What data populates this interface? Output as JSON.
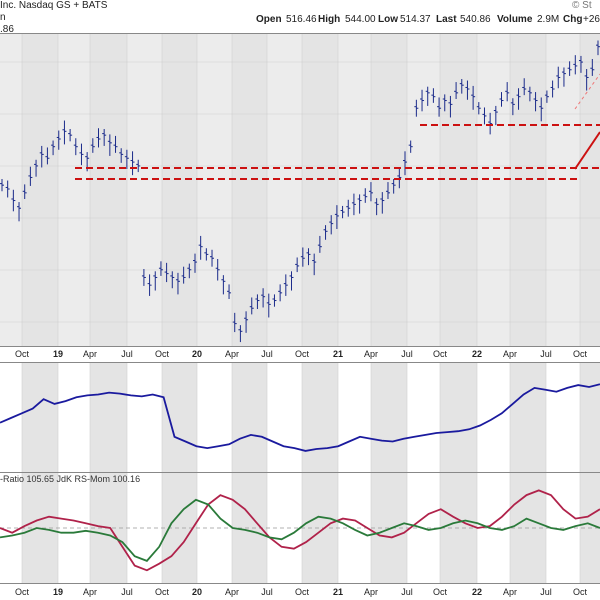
{
  "header": {
    "title_fragment": "Inc. Nasdaq GS + BATS",
    "open_label": "Open",
    "open_value": "516.46",
    "high_label": "High",
    "high_value": "544.00",
    "low_label": "Low",
    "low_value": "514.37",
    "last_label": "Last",
    "last_value": "540.86",
    "volume_label": "Volume",
    "volume_value": "2.9M",
    "chg_label": "Chg",
    "chg_value": "+26",
    "watermark": "© St",
    "price_fragment": ".86",
    "series_fragment": "n"
  },
  "chart_data": [
    {
      "type": "bar",
      "description_label": "price-ohlc",
      "x_ticks": [
        "Oct",
        "19",
        "Apr",
        "Jul",
        "Oct",
        "20",
        "Apr",
        "Jul",
        "Oct",
        "21",
        "Apr",
        "Jul",
        "Oct",
        "22",
        "Apr",
        "Jul",
        "Oct"
      ],
      "weekly_close_approx": [
        420,
        415,
        400,
        390,
        410,
        430,
        445,
        460,
        455,
        470,
        480,
        490,
        485,
        470,
        460,
        455,
        470,
        480,
        485,
        475,
        470,
        460,
        455,
        450,
        445,
        300,
        290,
        300,
        310,
        305,
        300,
        295,
        300,
        310,
        320,
        340,
        330,
        325,
        310,
        295,
        280,
        240,
        230,
        245,
        260,
        270,
        275,
        265,
        270,
        280,
        290,
        300,
        315,
        325,
        330,
        320,
        340,
        360,
        370,
        380,
        385,
        390,
        395,
        400,
        405,
        410,
        395,
        400,
        410,
        420,
        430,
        450,
        470,
        520,
        530,
        540,
        535,
        520,
        530,
        525,
        540,
        550,
        545,
        535,
        520,
        510,
        500,
        515,
        530,
        540,
        525,
        535,
        545,
        540,
        530,
        520,
        535,
        545,
        560,
        565,
        570,
        575,
        580,
        560,
        570,
        600
      ],
      "resistance_lines": [
        "upper",
        "lower"
      ],
      "trendline": "rising",
      "ylim": [
        0,
        1
      ]
    },
    {
      "type": "line",
      "description_label": "relative-strength",
      "series": [
        {
          "color": "#1a1a9e",
          "values": [
            0.45,
            0.5,
            0.55,
            0.6,
            0.7,
            0.65,
            0.68,
            0.72,
            0.74,
            0.75,
            0.77,
            0.76,
            0.74,
            0.73,
            0.75,
            0.72,
            0.3,
            0.25,
            0.2,
            0.18,
            0.2,
            0.22,
            0.28,
            0.32,
            0.3,
            0.25,
            0.2,
            0.18,
            0.15,
            0.17,
            0.18,
            0.2,
            0.25,
            0.3,
            0.28,
            0.26,
            0.25,
            0.28,
            0.3,
            0.32,
            0.34,
            0.35,
            0.36,
            0.38,
            0.42,
            0.48,
            0.55,
            0.65,
            0.75,
            0.82,
            0.8,
            0.78,
            0.82,
            0.85,
            0.83,
            0.86
          ]
        }
      ]
    },
    {
      "type": "line",
      "description_label": "rrg-indicators",
      "title": "-Ratio 105.65 JdK RS-Mom 100.16",
      "series": [
        {
          "name": "JdK RS-Ratio",
          "color": "#b0224a",
          "values": [
            0.5,
            0.45,
            0.52,
            0.58,
            0.62,
            0.6,
            0.58,
            0.55,
            0.52,
            0.5,
            0.3,
            0.1,
            0.05,
            0.12,
            0.2,
            0.35,
            0.55,
            0.75,
            0.85,
            0.8,
            0.7,
            0.55,
            0.4,
            0.3,
            0.28,
            0.35,
            0.45,
            0.55,
            0.6,
            0.58,
            0.5,
            0.42,
            0.4,
            0.45,
            0.55,
            0.65,
            0.7,
            0.62,
            0.55,
            0.5,
            0.52,
            0.62,
            0.75,
            0.85,
            0.9,
            0.85,
            0.7,
            0.6,
            0.62,
            0.7
          ]
        },
        {
          "name": "JdK RS-Momentum",
          "color": "#2a7a3a",
          "values": [
            0.4,
            0.42,
            0.45,
            0.5,
            0.48,
            0.45,
            0.45,
            0.47,
            0.45,
            0.42,
            0.35,
            0.2,
            0.15,
            0.3,
            0.55,
            0.7,
            0.8,
            0.75,
            0.6,
            0.5,
            0.48,
            0.45,
            0.4,
            0.38,
            0.45,
            0.55,
            0.62,
            0.6,
            0.55,
            0.48,
            0.42,
            0.45,
            0.5,
            0.55,
            0.52,
            0.48,
            0.5,
            0.55,
            0.58,
            0.55,
            0.5,
            0.48,
            0.52,
            0.6,
            0.55,
            0.5,
            0.48,
            0.52,
            0.55,
            0.5
          ]
        }
      ]
    }
  ]
}
